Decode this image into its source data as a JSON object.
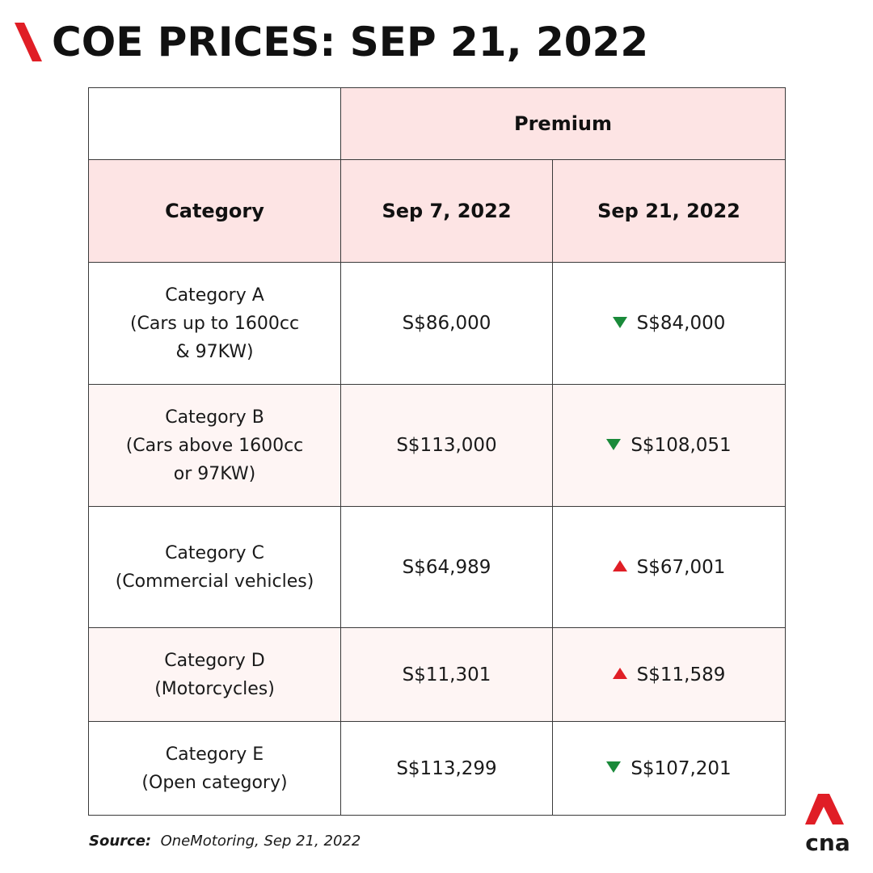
{
  "title": "COE PRICES: SEP 21, 2022",
  "colors": {
    "accent": "#e01e26",
    "header_bg": "#fde4e4",
    "row_tint": "#fef5f4",
    "down": "#1a8a3a",
    "up": "#e01e26"
  },
  "table": {
    "group_header": "Premium",
    "headers": {
      "category": "Category",
      "prev": "Sep 7, 2022",
      "curr": "Sep 21, 2022"
    },
    "rows": [
      {
        "lines": [
          "Category A",
          "(Cars up to 1600cc",
          "& 97KW)"
        ],
        "prev": "S$86,000",
        "curr": "S$84,000",
        "trend": "down"
      },
      {
        "lines": [
          "Category B",
          "(Cars above 1600cc",
          "or 97KW)"
        ],
        "prev": "S$113,000",
        "curr": "S$108,051",
        "trend": "down"
      },
      {
        "lines": [
          "Category C",
          "(Commercial vehicles)"
        ],
        "prev": "S$64,989",
        "curr": "S$67,001",
        "trend": "up"
      },
      {
        "lines": [
          "Category D",
          "(Motorcycles)"
        ],
        "prev": "S$11,301",
        "curr": "S$11,589",
        "trend": "up"
      },
      {
        "lines": [
          "Category E",
          "(Open category)"
        ],
        "prev": "S$113,299",
        "curr": "S$107,201",
        "trend": "down"
      }
    ]
  },
  "source": {
    "label": "Source:",
    "text": "OneMotoring, Sep 21, 2022"
  },
  "logo": {
    "text": "cna",
    "icon": "cna-logo-icon"
  }
}
